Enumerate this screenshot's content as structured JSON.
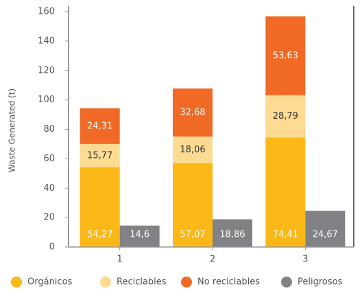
{
  "chart_data": {
    "type": "bar",
    "ylabel": "Waste Generated (t)",
    "categories": [
      "1",
      "2",
      "3"
    ],
    "series": [
      {
        "name": "Orgánicos",
        "color": "#fbb817",
        "values": [
          54.27,
          57.07,
          74.41
        ],
        "value_labels": [
          "54,27",
          "57,07",
          "74,41"
        ]
      },
      {
        "name": "Reciclables",
        "color": "#fddb93",
        "values": [
          15.77,
          18.06,
          28.79
        ],
        "value_labels": [
          "15,77",
          "18,06",
          "28,79"
        ]
      },
      {
        "name": "No reciclables",
        "color": "#f06a25",
        "values": [
          24.31,
          32.68,
          53.63
        ],
        "value_labels": [
          "24,31",
          "32,68",
          "53,63"
        ]
      },
      {
        "name": "Peligrosos",
        "color": "#808285",
        "values": [
          14.6,
          18.86,
          24.67
        ],
        "value_labels": [
          "14,6",
          "18,86",
          "24,67"
        ]
      }
    ],
    "ylim": [
      0,
      160
    ],
    "yticks": [
      0,
      20,
      40,
      60,
      80,
      100,
      120,
      140,
      160
    ],
    "grid": false,
    "legend": "bottom"
  }
}
